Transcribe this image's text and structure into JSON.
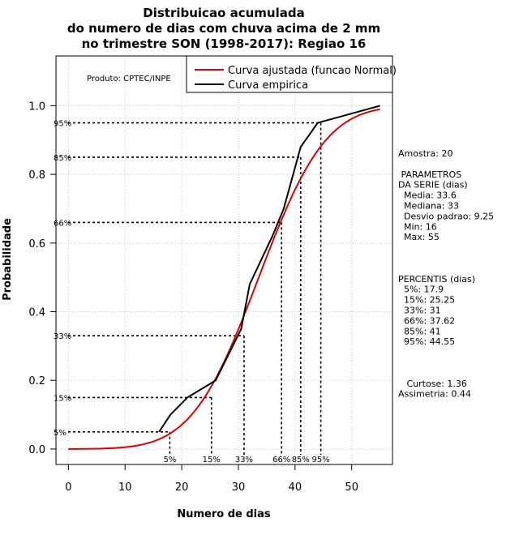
{
  "chart_data": {
    "type": "line",
    "title_lines": [
      "Distribuicao acumulada",
      "do numero de dias com chuva acima de 2 mm",
      "no trimestre SON (1998-2017): Regiao 16"
    ],
    "xlabel": "Numero de dias",
    "ylabel": "Probabilidade",
    "xlim": [
      -2.2,
      57.2
    ],
    "ylim": [
      -0.045,
      1.145
    ],
    "x_ticks": [
      0,
      10,
      20,
      30,
      40,
      50
    ],
    "y_ticks": [
      0.0,
      0.2,
      0.4,
      0.6,
      0.8,
      1.0
    ],
    "x_tick_labels": [
      "0",
      "10",
      "20",
      "30",
      "40",
      "50"
    ],
    "y_tick_labels": [
      "0.0",
      "0.2",
      "0.4",
      "0.6",
      "0.8",
      "1.0"
    ],
    "grid": true,
    "producer_label": "Produto: CPTEC/INPE",
    "legend_position": "top-right",
    "series": [
      {
        "name": "Curva ajustada (funcao Normal)",
        "color": "#e00000",
        "kind": "normal_cdf",
        "mean": 33.6,
        "sd": 9.25,
        "x_range": [
          0,
          55
        ]
      },
      {
        "name": "Curva empirica",
        "color": "#000000",
        "kind": "polyline",
        "x": [
          16,
          18,
          21,
          26,
          29,
          30.5,
          32,
          36,
          38,
          41,
          44,
          55
        ],
        "y": [
          0.05,
          0.1,
          0.15,
          0.2,
          0.3,
          0.35,
          0.48,
          0.62,
          0.7,
          0.88,
          0.95,
          1.0
        ]
      }
    ],
    "percentiles": [
      {
        "p": 0.05,
        "label_y": "5%",
        "label_x": "5%",
        "value": 17.9
      },
      {
        "p": 0.15,
        "label_y": "15%",
        "label_x": "15%",
        "value": 25.25
      },
      {
        "p": 0.33,
        "label_y": "33%",
        "label_x": "33%",
        "value": 31
      },
      {
        "p": 0.66,
        "label_y": "66%",
        "label_x": "66%",
        "value": 37.62
      },
      {
        "p": 0.85,
        "label_y": "85%",
        "label_x": "85%",
        "value": 41
      },
      {
        "p": 0.95,
        "label_y": "95%",
        "label_x": "95%",
        "value": 44.55
      }
    ],
    "side_panel": [
      "Amostra: 20",
      "",
      " PARAMETROS",
      "DA SERIE (dias)",
      "  Media: 33.6",
      "  Mediana: 33",
      "  Desvio padrao: 9.25",
      "  Min: 16",
      "  Max: 55",
      "",
      "",
      "",
      "PERCENTIS (dias)",
      "  5%: 17.9",
      "  15%: 25.25",
      "  33%: 31",
      "  66%: 37.62",
      "  85%: 41",
      "  95%: 44.55",
      "",
      "",
      "",
      "   Curtose: 1.36",
      "Assimetria: 0.44"
    ]
  }
}
